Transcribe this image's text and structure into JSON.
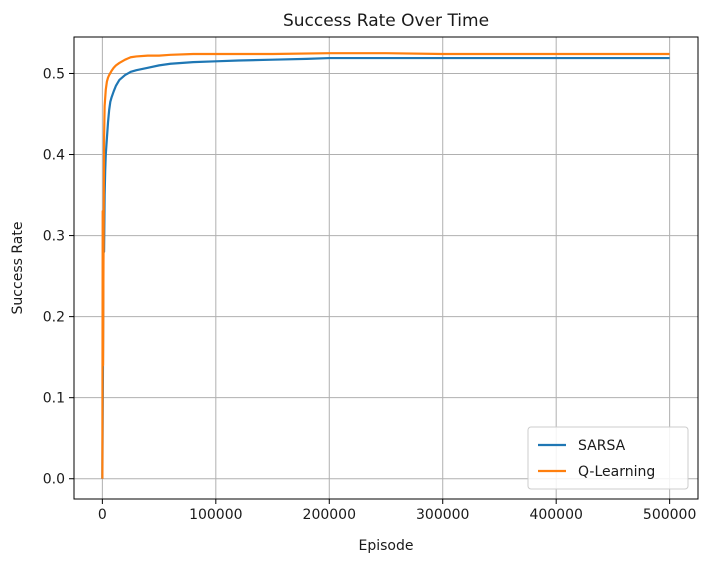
{
  "chart_data": {
    "type": "line",
    "title": "Success Rate Over Time",
    "xlabel": "Episode",
    "ylabel": "Success Rate",
    "xlim": [
      -25000,
      525000
    ],
    "ylim": [
      -0.025,
      0.545
    ],
    "xticks": [
      0,
      100000,
      200000,
      300000,
      400000,
      500000
    ],
    "xtick_labels": [
      "0",
      "100000",
      "200000",
      "300000",
      "400000",
      "500000"
    ],
    "yticks": [
      0.0,
      0.1,
      0.2,
      0.3,
      0.4,
      0.5
    ],
    "ytick_labels": [
      "0.0",
      "0.1",
      "0.2",
      "0.3",
      "0.4",
      "0.5"
    ],
    "grid": true,
    "legend_position": "lower right",
    "series": [
      {
        "name": "SARSA",
        "color": "#1f77b4",
        "x": [
          0,
          500,
          1000,
          1500,
          2000,
          2500,
          3000,
          4000,
          5000,
          6000,
          7000,
          8000,
          10000,
          12000,
          15000,
          20000,
          25000,
          30000,
          40000,
          50000,
          60000,
          80000,
          100000,
          120000,
          150000,
          180000,
          200000,
          250000,
          300000,
          350000,
          400000,
          450000,
          500000
        ],
        "y": [
          0.0,
          0.13,
          0.3,
          0.28,
          0.35,
          0.38,
          0.4,
          0.42,
          0.44,
          0.455,
          0.465,
          0.47,
          0.478,
          0.485,
          0.492,
          0.498,
          0.502,
          0.504,
          0.507,
          0.51,
          0.512,
          0.514,
          0.515,
          0.516,
          0.517,
          0.518,
          0.519,
          0.519,
          0.519,
          0.519,
          0.519,
          0.519,
          0.519
        ]
      },
      {
        "name": "Q-Learning",
        "color": "#ff7f0e",
        "x": [
          0,
          300,
          600,
          1000,
          1500,
          2000,
          2500,
          3000,
          4000,
          5000,
          6000,
          8000,
          10000,
          12000,
          15000,
          20000,
          25000,
          30000,
          40000,
          50000,
          60000,
          80000,
          100000,
          150000,
          200000,
          250000,
          300000,
          350000,
          400000,
          450000,
          500000
        ],
        "y": [
          0.0,
          0.33,
          0.14,
          0.27,
          0.42,
          0.46,
          0.47,
          0.48,
          0.49,
          0.495,
          0.498,
          0.503,
          0.507,
          0.51,
          0.513,
          0.517,
          0.52,
          0.521,
          0.522,
          0.522,
          0.523,
          0.524,
          0.524,
          0.524,
          0.525,
          0.525,
          0.524,
          0.524,
          0.524,
          0.524,
          0.524
        ]
      }
    ]
  }
}
